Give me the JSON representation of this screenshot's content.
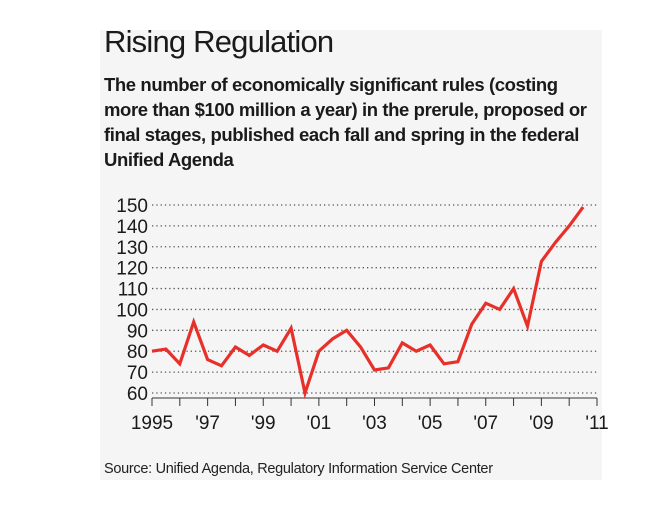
{
  "header": {
    "title": "Rising Regulation",
    "subtitle": "The number of economically significant rules (costing more than $100 million a year) in the prerule, proposed or final stages, published each fall and spring in the federal Unified Agenda"
  },
  "footer": {
    "source": "Source: Unified Agenda, Regulatory Information Service Center"
  },
  "colors": {
    "line": "#e8302a",
    "grid": "#555555",
    "text": "#1a1a1a",
    "panel": "#f5f5f5"
  },
  "chart_data": {
    "type": "line",
    "title": "Rising Regulation",
    "xlabel": "",
    "ylabel": "",
    "ylim": [
      60,
      150
    ],
    "y_ticks": [
      150,
      140,
      130,
      120,
      110,
      100,
      90,
      80,
      70,
      60
    ],
    "x_ticks": [
      "1995",
      "'97",
      "'99",
      "'01",
      "'03",
      "'05",
      "'07",
      "'09",
      "'11"
    ],
    "x_tick_positions": [
      1995,
      1997,
      1999,
      2001,
      2003,
      2005,
      2007,
      2009,
      2011
    ],
    "xlim": [
      1995,
      2011
    ],
    "grid": true,
    "series": [
      {
        "values": [
          80,
          81,
          74,
          94,
          76,
          73,
          82,
          78,
          83,
          80,
          91,
          60,
          80,
          86,
          90,
          82,
          71,
          72,
          84,
          80,
          83,
          74,
          75,
          93,
          103,
          100,
          110,
          92,
          123,
          132,
          140,
          149
        ],
        "x": [
          1995.0,
          1995.5,
          1996.0,
          1996.5,
          1997.0,
          1997.5,
          1998.0,
          1998.5,
          1999.0,
          1999.5,
          2000.0,
          2000.5,
          2001.0,
          2001.5,
          2002.0,
          2002.5,
          2003.0,
          2003.5,
          2004.0,
          2004.5,
          2005.0,
          2005.5,
          2006.0,
          2006.5,
          2007.0,
          2007.5,
          2008.0,
          2008.5,
          2009.0,
          2009.5,
          2010.0,
          2010.5
        ]
      }
    ]
  }
}
